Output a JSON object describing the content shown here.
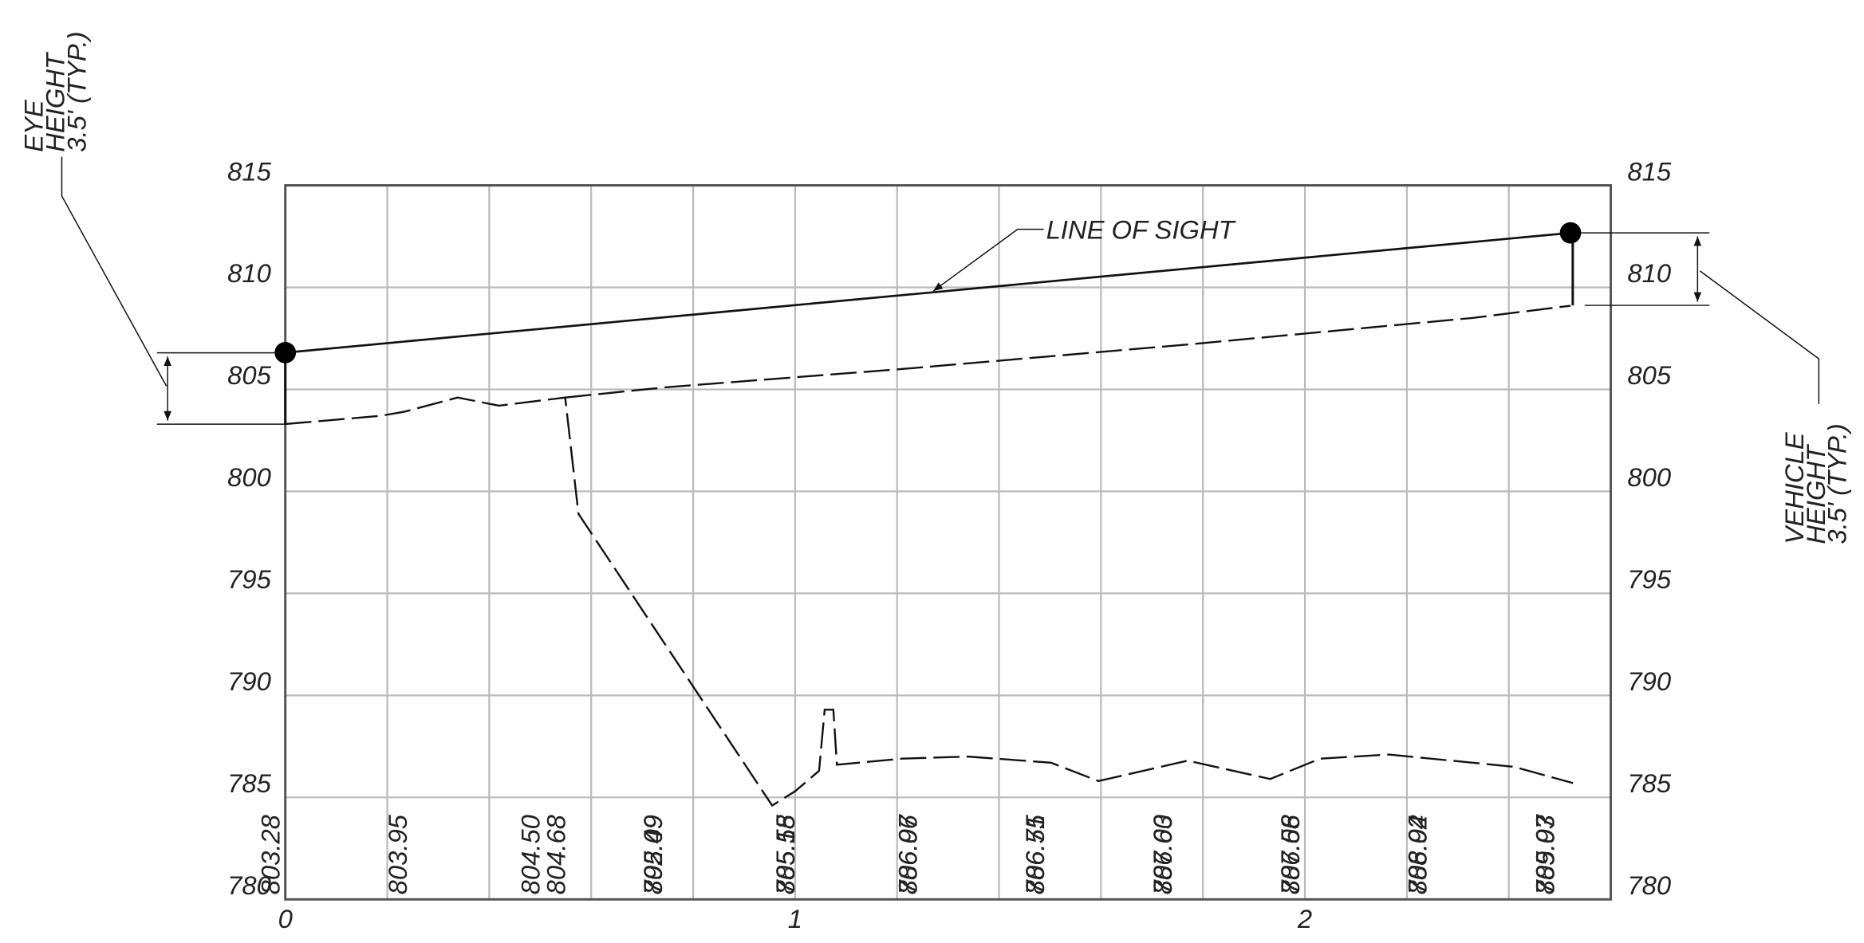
{
  "chart_data": {
    "type": "line",
    "xlim": [
      0,
      2.6
    ],
    "ylim": [
      780,
      815
    ],
    "xticks": [
      0,
      1,
      2
    ],
    "yticks": [
      780,
      785,
      790,
      795,
      800,
      805,
      810,
      815
    ],
    "xgridlines": [
      0.2,
      0.4,
      0.6,
      0.8,
      1.0,
      1.2,
      1.4,
      1.6,
      1.8,
      2.0,
      2.2,
      2.4
    ],
    "grid": true,
    "series": [
      {
        "style": "dashed",
        "color": "#111",
        "x": [
          0,
          0.186,
          0.233,
          0.338,
          0.419,
          0.549,
          0.575,
          0.955,
          1.0,
          1.047,
          1.058,
          1.075,
          1.082,
          1.21,
          1.339,
          1.502,
          1.595,
          1.77,
          1.932,
          2.03,
          2.165,
          2.41,
          2.526
        ],
        "values": [
          803.3,
          803.7,
          803.9,
          804.6,
          804.2,
          804.6,
          798.9,
          784.6,
          785.3,
          786.3,
          789.3,
          789.3,
          786.6,
          786.9,
          787.0,
          786.7,
          785.8,
          786.8,
          785.9,
          786.9,
          787.1,
          786.5,
          785.7
        ]
      },
      {
        "style": "dashed",
        "color": "#111",
        "x": [
          0.549,
          0.745,
          1.211,
          1.77,
          2.328,
          2.521
        ],
        "values": [
          804.6,
          805.1,
          806.0,
          807.2,
          808.5,
          809.1
        ]
      },
      {
        "style": "solid",
        "color": "#111",
        "markers": true,
        "x": [
          0,
          2.521
        ],
        "values": [
          806.8,
          812.67
        ]
      }
    ],
    "elevation_labels": [
      {
        "x": -0.03,
        "label": "803.28"
      },
      {
        "x": 0.22,
        "label": "803.95"
      },
      {
        "x": 0.48,
        "label": "804.50"
      },
      {
        "x": 0.53,
        "label": "804.68"
      },
      {
        "x": 0.72,
        "label": "805.09"
      },
      {
        "x": 0.72,
        "label": "792.49"
      },
      {
        "x": 0.98,
        "label": "805.58"
      },
      {
        "x": 0.98,
        "label": "785.15"
      },
      {
        "x": 1.22,
        "label": "806.07"
      },
      {
        "x": 1.22,
        "label": "786.96"
      },
      {
        "x": 1.47,
        "label": "806.55"
      },
      {
        "x": 1.47,
        "label": "786.71"
      },
      {
        "x": 1.72,
        "label": "807.03"
      },
      {
        "x": 1.72,
        "label": "786.60"
      },
      {
        "x": 1.97,
        "label": "807.58"
      },
      {
        "x": 1.97,
        "label": "786.06"
      },
      {
        "x": 2.22,
        "label": "808.04"
      },
      {
        "x": 2.22,
        "label": "786.92"
      },
      {
        "x": 2.47,
        "label": "809.03"
      },
      {
        "x": 2.47,
        "label": "785.97"
      }
    ],
    "annotations": {
      "line_of_sight": "LINE OF SIGHT",
      "eye_height": [
        "EYE",
        "HEIGHT",
        "3.5' (TYP.)"
      ],
      "vehicle_height": [
        "VEHICLE",
        "HEIGHT",
        "3.5' (TYP.)"
      ]
    }
  }
}
